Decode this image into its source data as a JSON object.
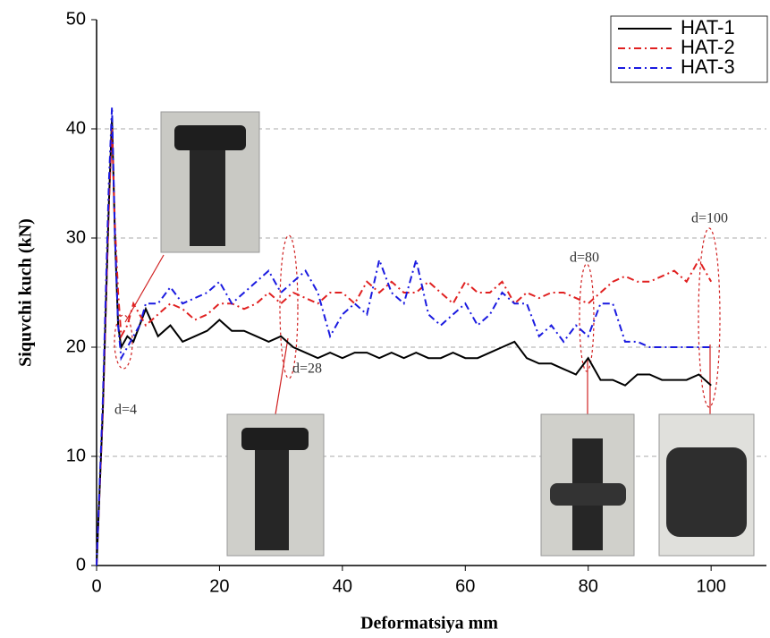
{
  "chart_data": {
    "type": "line",
    "x_label": "Deformatsiya mm",
    "y_label": "Siquvchi kuch (kN)",
    "x": [
      0,
      1,
      2,
      2.5,
      3,
      3.5,
      4,
      5,
      6,
      7,
      8,
      10,
      12,
      14,
      16,
      18,
      20,
      22,
      24,
      26,
      28,
      30,
      32,
      34,
      36,
      38,
      40,
      42,
      44,
      46,
      48,
      50,
      52,
      54,
      56,
      58,
      60,
      62,
      64,
      66,
      68,
      70,
      72,
      74,
      76,
      78,
      80,
      82,
      84,
      86,
      88,
      90,
      92,
      94,
      96,
      98,
      100
    ],
    "series": [
      {
        "name": "HAT-1",
        "color": "#000000",
        "dash": "solid",
        "values": [
          0,
          14,
          33,
          41,
          30,
          22,
          20,
          21,
          20.5,
          22,
          23.5,
          21,
          22,
          20.5,
          21,
          21.5,
          22.5,
          21.5,
          21.5,
          21,
          20.5,
          21,
          20,
          19.5,
          19,
          19.5,
          19,
          19.5,
          19.5,
          19,
          19.5,
          19,
          19.5,
          19,
          19,
          19.5,
          19,
          19,
          19.5,
          20,
          20.5,
          19,
          18.5,
          18.5,
          18,
          17.5,
          19,
          17,
          17,
          16.5,
          17.5,
          17.5,
          17,
          17,
          17,
          17.5,
          16.5
        ]
      },
      {
        "name": "HAT-2",
        "color": "#e02020",
        "dash": "dash-dot",
        "values": [
          0,
          14,
          33,
          40,
          31,
          25,
          21,
          22,
          24,
          23,
          22,
          23,
          24,
          23.5,
          22.5,
          23,
          24,
          24,
          23.5,
          24,
          25,
          24,
          25,
          24.5,
          24,
          25,
          25,
          24,
          26,
          25,
          26,
          25,
          25,
          26,
          25,
          24,
          26,
          25,
          25,
          26,
          24,
          25,
          24.5,
          25,
          25,
          24.5,
          24,
          25,
          26,
          26.5,
          26,
          26,
          26.5,
          27,
          26,
          28,
          26
        ]
      },
      {
        "name": "HAT-3",
        "color": "#1a1ae0",
        "dash": "dash-dot",
        "values": [
          0,
          15,
          35,
          42,
          30,
          22,
          19,
          20,
          21,
          22,
          24,
          24,
          25.5,
          24,
          24.5,
          25,
          26,
          24,
          25,
          26,
          27,
          25,
          26,
          27,
          25,
          21,
          23,
          24,
          23,
          28,
          25,
          24,
          28,
          23,
          22,
          23,
          24,
          22,
          23,
          25,
          24,
          24,
          21,
          22,
          20.5,
          22,
          21,
          24,
          24,
          20.5,
          20.5,
          20,
          20,
          20,
          20,
          20,
          20
        ]
      }
    ],
    "xlim": [
      0,
      109
    ],
    "ylim": [
      0,
      50
    ],
    "xticks": [
      0,
      20,
      40,
      60,
      80,
      100
    ],
    "yticks": [
      0,
      10,
      20,
      30,
      40,
      50
    ],
    "grid": true,
    "legend": "upper right",
    "annotations": [
      "d=4",
      "d=28",
      "d=80",
      "d=100"
    ]
  }
}
